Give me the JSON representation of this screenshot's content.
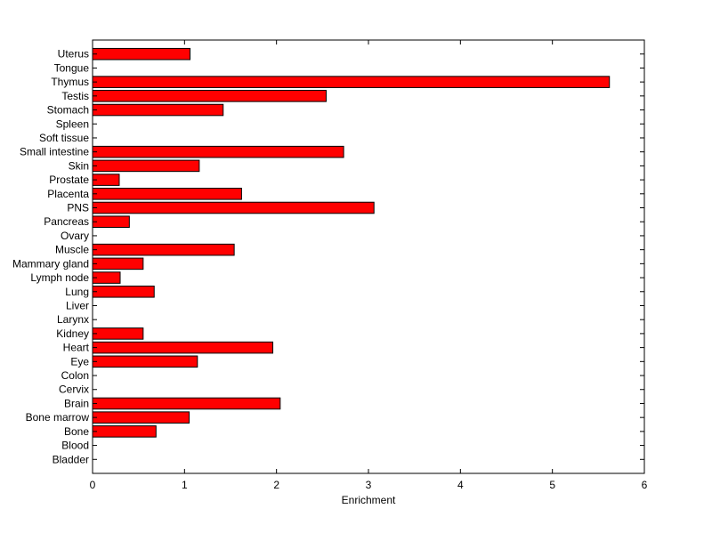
{
  "chart_data": {
    "type": "bar",
    "orientation": "horizontal",
    "categories": [
      "Bladder",
      "Blood",
      "Bone",
      "Bone marrow",
      "Brain",
      "Cervix",
      "Colon",
      "Eye",
      "Heart",
      "Kidney",
      "Larynx",
      "Liver",
      "Lung",
      "Lymph node",
      "Mammary gland",
      "Muscle",
      "Ovary",
      "Pancreas",
      "PNS",
      "Placenta",
      "Prostate",
      "Skin",
      "Small intestine",
      "Soft tissue",
      "Spleen",
      "Stomach",
      "Testis",
      "Thymus",
      "Tongue",
      "Uterus"
    ],
    "values": [
      0,
      0,
      0.69,
      1.05,
      2.04,
      0,
      0,
      1.14,
      1.96,
      0.55,
      0,
      0,
      0.67,
      0.3,
      0.55,
      1.54,
      0,
      0.4,
      3.06,
      1.62,
      0.29,
      1.16,
      2.73,
      0,
      0,
      1.42,
      2.54,
      5.62,
      0,
      1.06
    ],
    "title": "",
    "xlabel": "Enrichment",
    "ylabel": "",
    "xlim": [
      0,
      6
    ],
    "xticks": [
      0,
      1,
      2,
      3,
      4,
      5,
      6
    ],
    "bar_color": "#ff0000",
    "grid": false
  }
}
